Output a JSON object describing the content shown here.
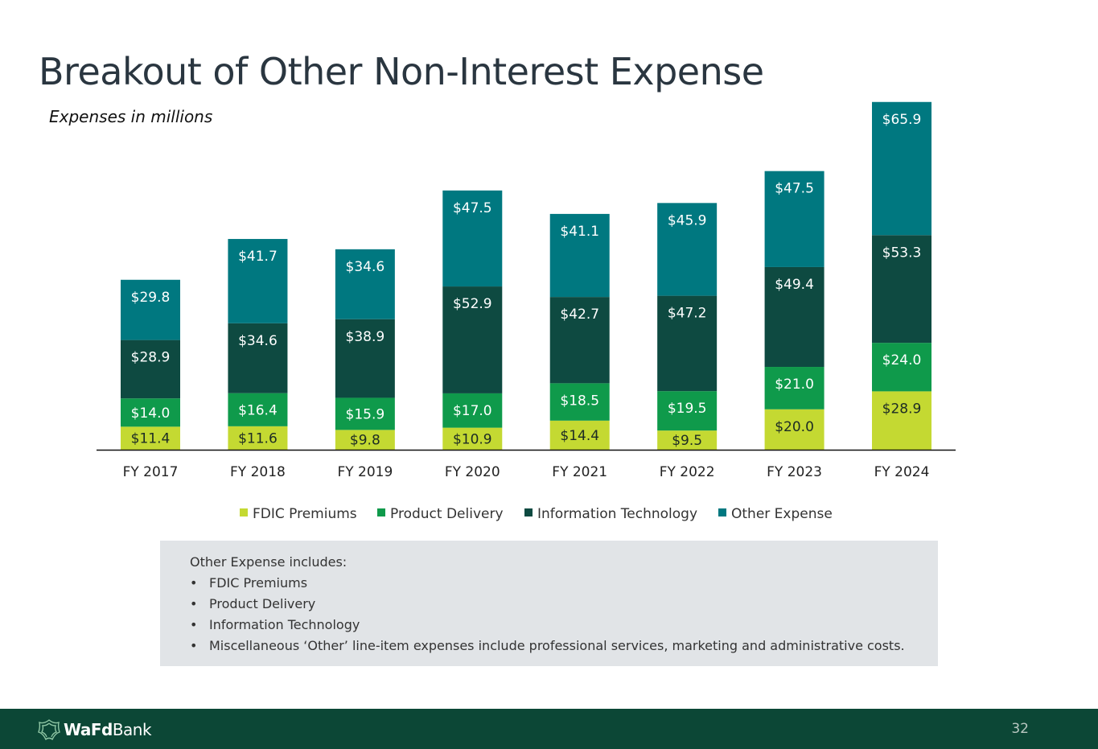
{
  "title": "Breakout of Other Non-Interest Expense",
  "subtitle": "Expenses in millions",
  "chart_data": {
    "type": "bar",
    "stacked": true,
    "categories": [
      "FY 2017",
      "FY 2018",
      "FY 2019",
      "FY 2020",
      "FY 2021",
      "FY 2022",
      "FY 2023",
      "FY 2024"
    ],
    "series": [
      {
        "name": "FDIC Premiums",
        "color": "#c4d932",
        "values": [
          11.4,
          11.6,
          9.8,
          10.9,
          14.4,
          9.5,
          20.0,
          28.9
        ],
        "labels": [
          "$11.4",
          "$11.6",
          "$9.8",
          "$10.9",
          "$14.4",
          "$9.5",
          "$20.0",
          "$28.9"
        ]
      },
      {
        "name": "Product Delivery",
        "color": "#0f9a4b",
        "values": [
          14.0,
          16.4,
          15.9,
          17.0,
          18.5,
          19.5,
          21.0,
          24.0
        ],
        "labels": [
          "$14.0",
          "$16.4",
          "$15.9",
          "$17.0",
          "$18.5",
          "$19.5",
          "$21.0",
          "$24.0"
        ]
      },
      {
        "name": "Information Technology",
        "color": "#0e4a41",
        "values": [
          28.9,
          34.6,
          38.9,
          52.9,
          42.7,
          47.2,
          49.4,
          53.3
        ],
        "labels": [
          "$28.9",
          "$34.6",
          "$38.9",
          "$52.9",
          "$42.7",
          "$47.2",
          "$49.4",
          "$53.3"
        ]
      },
      {
        "name": "Other Expense",
        "color": "#007880",
        "values": [
          29.8,
          41.7,
          34.6,
          47.5,
          41.1,
          45.9,
          47.5,
          65.9
        ],
        "labels": [
          "$29.8",
          "$41.7",
          "$34.6",
          "$47.5",
          "$41.1",
          "$45.9",
          "$47.5",
          "$65.9"
        ]
      }
    ],
    "legend_position": "bottom",
    "grid": false
  },
  "note": {
    "heading": "Other Expense includes:",
    "items": [
      "FDIC Premiums",
      "Product Delivery",
      "Information Technology",
      "Miscellaneous ‘Other’ line-item expenses include professional services, marketing and administrative costs."
    ]
  },
  "footer": {
    "brand_bold": "WaFd",
    "brand_rest": "Bank",
    "page_number": "32"
  }
}
